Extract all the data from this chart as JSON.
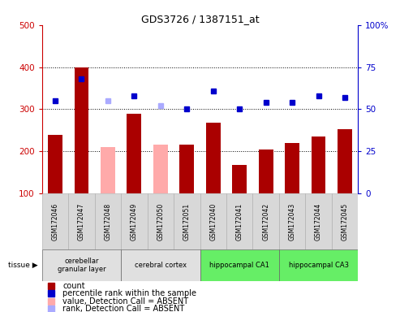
{
  "title": "GDS3726 / 1387151_at",
  "samples": [
    "GSM172046",
    "GSM172047",
    "GSM172048",
    "GSM172049",
    "GSM172050",
    "GSM172051",
    "GSM172040",
    "GSM172041",
    "GSM172042",
    "GSM172043",
    "GSM172044",
    "GSM172045"
  ],
  "bar_values": [
    240,
    400,
    210,
    290,
    215,
    215,
    268,
    168,
    205,
    220,
    235,
    253
  ],
  "bar_absent": [
    false,
    false,
    true,
    false,
    true,
    false,
    false,
    false,
    false,
    false,
    false,
    false
  ],
  "rank_values": [
    55,
    68,
    55,
    58,
    52,
    50,
    61,
    50,
    54,
    54,
    58,
    57
  ],
  "rank_absent": [
    false,
    false,
    true,
    false,
    true,
    false,
    false,
    false,
    false,
    false,
    false,
    false
  ],
  "ylim_left": [
    100,
    500
  ],
  "ylim_right": [
    0,
    100
  ],
  "yticks_left": [
    100,
    200,
    300,
    400,
    500
  ],
  "yticks_right": [
    0,
    25,
    50,
    75,
    100
  ],
  "bar_color_present": "#aa0000",
  "bar_color_absent": "#ffaaaa",
  "rank_color_present": "#0000cc",
  "rank_color_absent": "#aaaaff",
  "tissue_groups": [
    {
      "label": "cerebellar\ngranular layer",
      "start": 0,
      "end": 3,
      "color": "#e0e0e0"
    },
    {
      "label": "cerebral cortex",
      "start": 3,
      "end": 6,
      "color": "#e0e0e0"
    },
    {
      "label": "hippocampal CA1",
      "start": 6,
      "end": 9,
      "color": "#66ee66"
    },
    {
      "label": "hippocampal CA3",
      "start": 9,
      "end": 12,
      "color": "#66ee66"
    }
  ],
  "legend_items": [
    {
      "label": "count",
      "color": "#aa0000",
      "marker": "s"
    },
    {
      "label": "percentile rank within the sample",
      "color": "#0000cc",
      "marker": "s"
    },
    {
      "label": "value, Detection Call = ABSENT",
      "color": "#ffaaaa",
      "marker": "s"
    },
    {
      "label": "rank, Detection Call = ABSENT",
      "color": "#aaaaff",
      "marker": "s"
    }
  ],
  "tissue_label": "tissue"
}
